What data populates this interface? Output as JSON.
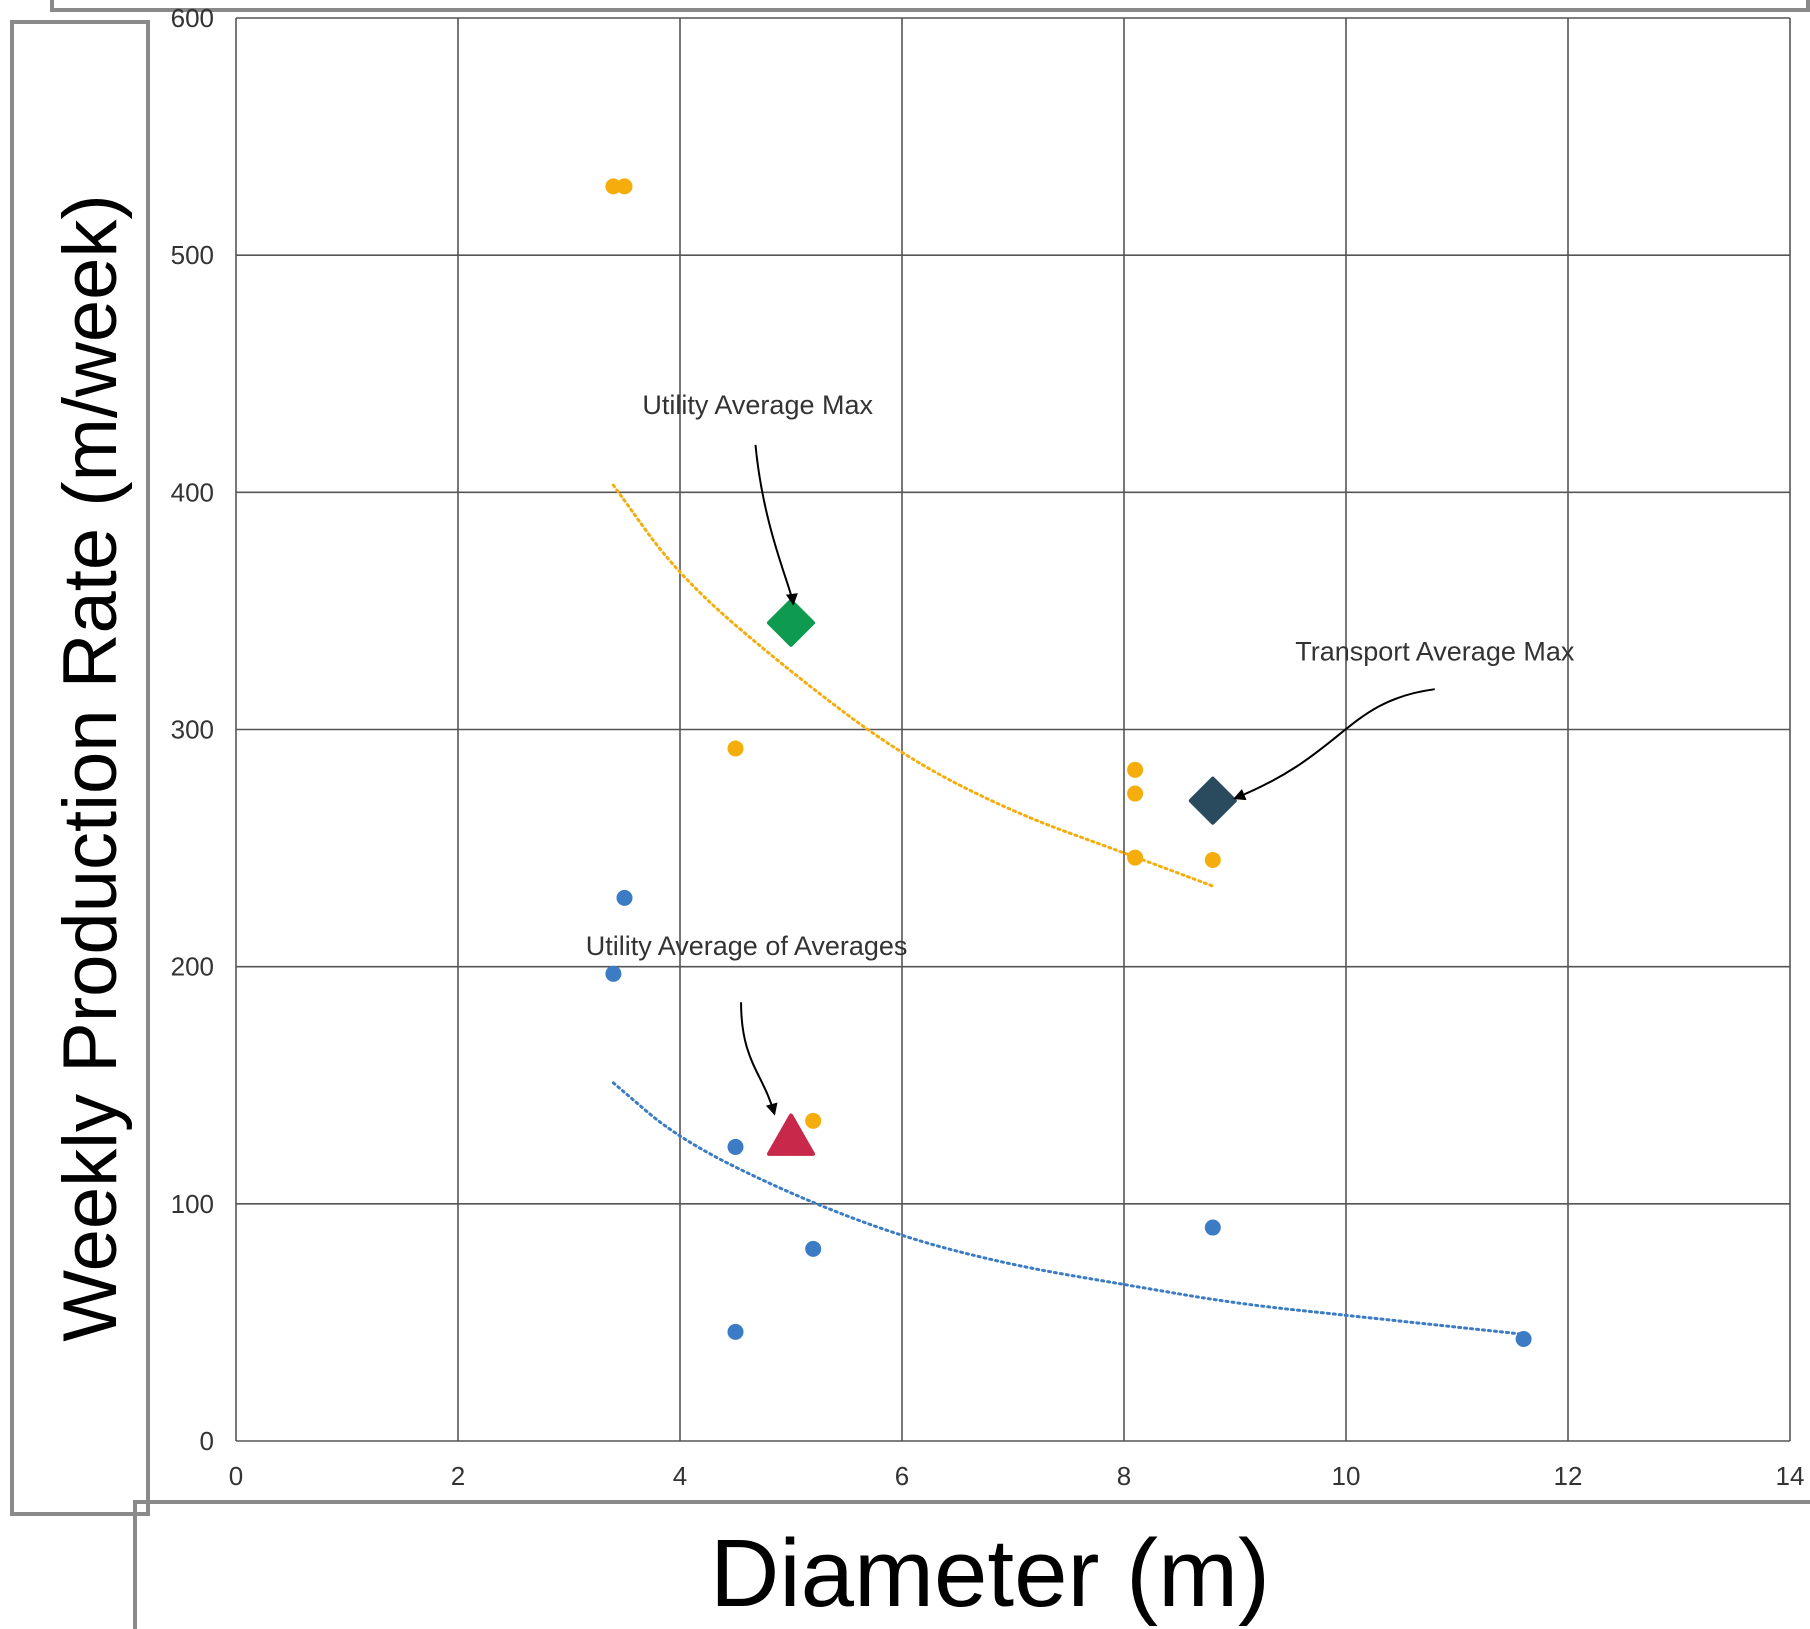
{
  "chart_data": {
    "type": "scatter",
    "xlabel": "Diameter (m)",
    "ylabel": "Weekly Production Rate (m/week)",
    "xlim": [
      0,
      14
    ],
    "ylim": [
      0,
      600
    ],
    "x_ticks": [
      "0",
      "2",
      "4",
      "6",
      "8",
      "10",
      "12",
      "14"
    ],
    "y_ticks": [
      "0",
      "100",
      "200",
      "300",
      "400",
      "500",
      "600"
    ],
    "grid": true,
    "colors": {
      "transport": "#f5ad0b",
      "utility": "#3b7cc4",
      "utility_avg_max": "#0e9a4f",
      "transport_avg_max": "#2a4a5e",
      "utility_avg_of_avgs": "#c8284a",
      "grid": "#555555"
    },
    "series": [
      {
        "key": "transport",
        "points": [
          {
            "x": 3.4,
            "y": 529
          },
          {
            "x": 3.5,
            "y": 529
          },
          {
            "x": 4.5,
            "y": 292
          },
          {
            "x": 8.1,
            "y": 283
          },
          {
            "x": 8.1,
            "y": 273
          },
          {
            "x": 8.1,
            "y": 246
          },
          {
            "x": 8.8,
            "y": 245
          },
          {
            "x": 5.2,
            "y": 135
          }
        ]
      },
      {
        "key": "utility",
        "points": [
          {
            "x": 3.5,
            "y": 229
          },
          {
            "x": 3.4,
            "y": 197
          },
          {
            "x": 4.5,
            "y": 124
          },
          {
            "x": 5.2,
            "y": 81
          },
          {
            "x": 4.5,
            "y": 46
          },
          {
            "x": 8.8,
            "y": 90
          },
          {
            "x": 11.6,
            "y": 43
          }
        ]
      }
    ],
    "trendlines": [
      {
        "key": "transport",
        "style": "dotted",
        "points": [
          [
            3.4,
            403
          ],
          [
            4,
            364
          ],
          [
            5,
            324
          ],
          [
            6,
            289
          ],
          [
            7,
            265
          ],
          [
            8,
            248
          ],
          [
            8.8,
            234
          ]
        ]
      },
      {
        "key": "utility",
        "style": "dotted",
        "points": [
          [
            3.4,
            151
          ],
          [
            4,
            127
          ],
          [
            5,
            104
          ],
          [
            6,
            86
          ],
          [
            7,
            74
          ],
          [
            8,
            66
          ],
          [
            9,
            58
          ],
          [
            10,
            53
          ],
          [
            11,
            48
          ],
          [
            11.6,
            45
          ]
        ]
      }
    ],
    "highlights": [
      {
        "key": "utility_avg_max",
        "shape": "diamond",
        "x": 5.0,
        "y": 345
      },
      {
        "key": "transport_avg_max",
        "shape": "diamond",
        "x": 8.8,
        "y": 270
      },
      {
        "key": "utility_avg_of_avgs",
        "shape": "triangle",
        "x": 5.0,
        "y": 128
      }
    ],
    "annotations": [
      {
        "key": "utility_avg_max",
        "text": "Utility Average Max",
        "text_x": 4.7,
        "text_y": 433,
        "arrow": [
          [
            4.68,
            420
          ],
          [
            4.75,
            385
          ],
          [
            5.0,
            360
          ],
          [
            5.02,
            353
          ]
        ]
      },
      {
        "key": "transport_avg_max",
        "text": "Transport Average Max",
        "text_x": 10.8,
        "text_y": 329,
        "arrow": [
          [
            10.8,
            317
          ],
          [
            10.0,
            312
          ],
          [
            10.0,
            290
          ],
          [
            9.0,
            271
          ]
        ]
      },
      {
        "key": "utility_avg_of_avgs",
        "text": "Utility Average of Averages",
        "text_x": 4.6,
        "text_y": 205,
        "arrow": [
          [
            4.55,
            185
          ],
          [
            4.55,
            160
          ],
          [
            4.75,
            155
          ],
          [
            4.85,
            138
          ]
        ]
      }
    ]
  }
}
